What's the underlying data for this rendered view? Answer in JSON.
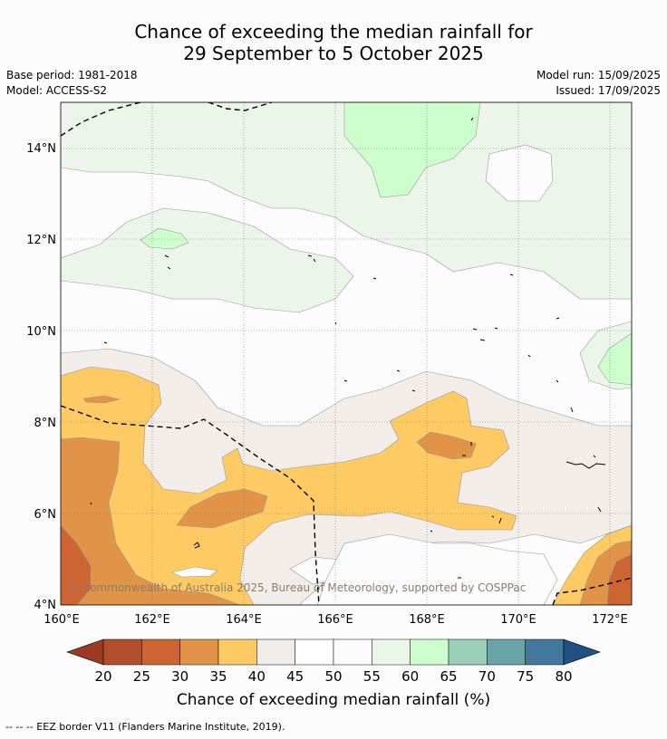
{
  "title": {
    "line1": "Chance of exceeding the median rainfall for",
    "line2": "29 September to 5 October 2025"
  },
  "meta": {
    "base_period": "Base period: 1981-2018",
    "model": "Model: ACCESS-S2",
    "model_run": "Model run: 15/09/2025",
    "issued": "Issued: 17/09/2025"
  },
  "map": {
    "x_ticks": [
      "160°E",
      "162°E",
      "164°E",
      "166°E",
      "168°E",
      "170°E",
      "172°E"
    ],
    "y_ticks": [
      "14°N",
      "12°N",
      "10°N",
      "8°N",
      "6°N",
      "4°N"
    ],
    "copyright": "© Commonwealth of Australia 2025, Bureau of Meteorology, supported by COSPPac"
  },
  "colorbar": {
    "ticks": [
      "20",
      "25",
      "30",
      "35",
      "40",
      "45",
      "50",
      "55",
      "60",
      "65",
      "70",
      "75",
      "80"
    ],
    "colors": [
      "#b04d2a",
      "#cd6432",
      "#e19447",
      "#fdca64",
      "#f2ede8",
      "#ffffff",
      "#fbfcfb",
      "#ebf5ea",
      "#ccffcc",
      "#9ccfb8",
      "#6ba4a8",
      "#41789b"
    ],
    "under_color": "#9b3b24",
    "over_color": "#1f5184",
    "label": "Chance of exceeding median rainfall (%)"
  },
  "footnote": "--  --  -- EEZ border V11 (Flanders Marine Institute, 2019)."
}
